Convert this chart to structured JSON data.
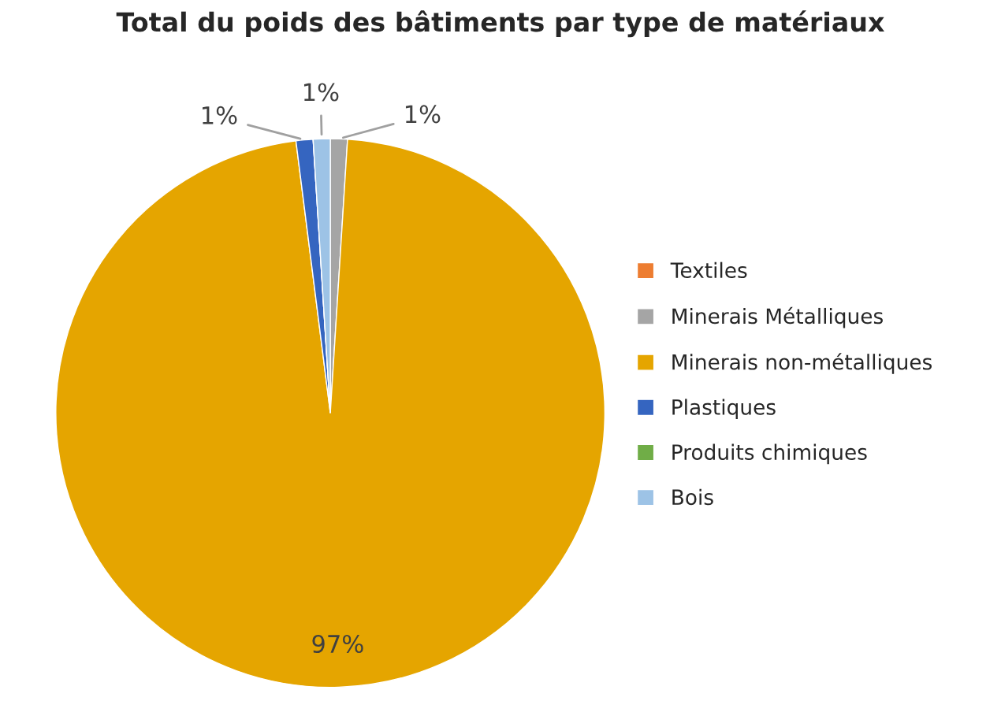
{
  "chart_data": {
    "type": "pie",
    "title": "Total du poids des bâtiments par type de matériaux",
    "categories": [
      "Textiles",
      "Minerais Métalliques",
      "Minerais non-métalliques",
      "Plastiques",
      "Produits chimiques",
      "Bois"
    ],
    "values": [
      0,
      1,
      97,
      1,
      0,
      1
    ],
    "colors": [
      "#ed7d31",
      "#a5a5a5",
      "#e5a500",
      "#3565c0",
      "#70ad47",
      "#9dc3e6"
    ],
    "value_labels": [
      null,
      "1%",
      "97%",
      "1%",
      null,
      "1%"
    ],
    "legend": "right"
  }
}
